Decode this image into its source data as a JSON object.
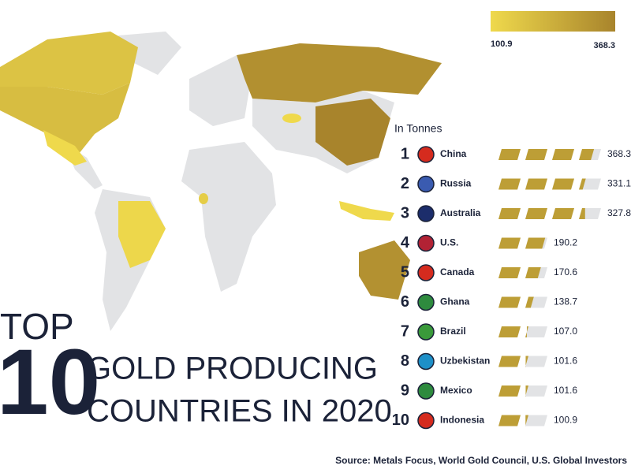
{
  "chart_data": {
    "type": "pictogram",
    "title_parts": [
      "TOP",
      "10",
      "GOLD PRODUCING",
      "COUNTRIES IN 2020"
    ],
    "subtitle": "In Tonnes",
    "source": "Source: Metals Focus, World Gold Council, U.S. Global Investors",
    "ranks": [
      1,
      2,
      3,
      4,
      5,
      6,
      7,
      8,
      9,
      10
    ],
    "categories": [
      "China",
      "Russia",
      "Australia",
      "U.S.",
      "Canada",
      "Ghana",
      "Brazil",
      "Uzbekistan",
      "Mexico",
      "Indonesia"
    ],
    "values": [
      368.3,
      331.1,
      327.8,
      190.2,
      170.6,
      138.7,
      107.0,
      101.6,
      101.6,
      100.9
    ],
    "value_labels": [
      "368.3",
      "331.1",
      "327.8",
      "190.2",
      "170.6",
      "138.7",
      "107.0",
      "101.6",
      "101.6",
      "100.9"
    ],
    "colorscale": {
      "min": 100.9,
      "max": 368.3,
      "colors": [
        "#efd94c",
        "#a8842c"
      ]
    },
    "empty_color": "#e2e3e5"
  }
}
